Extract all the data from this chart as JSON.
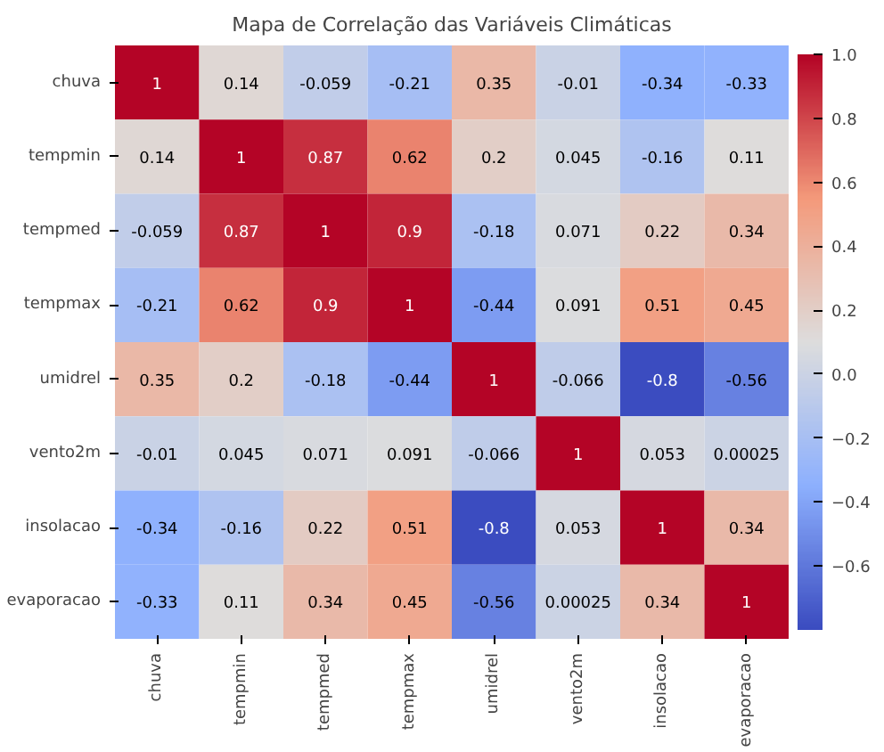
{
  "chart_data": {
    "type": "heatmap",
    "title": "Mapa de Correlação das Variáveis Climáticas",
    "categories": [
      "chuva",
      "tempmin",
      "tempmed",
      "tempmax",
      "umidrel",
      "vento2m",
      "insolacao",
      "evaporacao"
    ],
    "y_categories": [
      "chuva",
      "tempmin",
      "tempmed",
      "tempmax",
      "umidrel",
      "vento2m",
      "insolacao",
      "evaporacao"
    ],
    "cells": [
      [
        1,
        0.14,
        -0.059,
        -0.21,
        0.35,
        -0.01,
        -0.34,
        -0.33
      ],
      [
        0.14,
        1,
        0.87,
        0.62,
        0.2,
        0.045,
        -0.16,
        0.11
      ],
      [
        -0.059,
        0.87,
        1,
        0.9,
        -0.18,
        0.071,
        0.22,
        0.34
      ],
      [
        -0.21,
        0.62,
        0.9,
        1,
        -0.44,
        0.091,
        0.51,
        0.45
      ],
      [
        0.35,
        0.2,
        -0.18,
        -0.44,
        1,
        -0.066,
        -0.8,
        -0.56
      ],
      [
        -0.01,
        0.045,
        0.071,
        0.091,
        -0.066,
        1,
        0.053,
        0.00025
      ],
      [
        -0.34,
        -0.16,
        0.22,
        0.51,
        -0.8,
        0.053,
        1,
        0.34
      ],
      [
        -0.33,
        0.11,
        0.34,
        0.45,
        -0.56,
        0.00025,
        0.34,
        1
      ]
    ],
    "data_labels": true,
    "clim": [
      -0.8,
      1.0
    ],
    "cticks": [
      {
        "value": -0.6,
        "label": "−0.6"
      },
      {
        "value": -0.4,
        "label": "−0.4"
      },
      {
        "value": -0.2,
        "label": "−0.2"
      },
      {
        "value": 0,
        "label": "0.0"
      },
      {
        "value": 0.2,
        "label": "0.2"
      },
      {
        "value": 0.4,
        "label": "0.4"
      },
      {
        "value": 0.6,
        "label": "0.6"
      },
      {
        "value": 0.8,
        "label": "0.8"
      },
      {
        "value": 1,
        "label": "1.0"
      }
    ]
  }
}
